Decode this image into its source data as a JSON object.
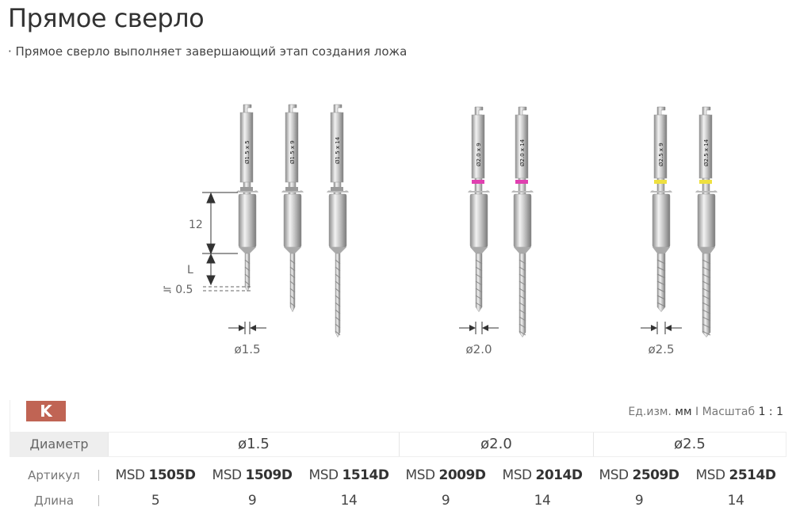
{
  "title": "Прямое сверло",
  "subtitle": "· Прямое сверло выполняет завершающий этап создания ложа",
  "figure": {
    "dims": {
      "shoulder": "12",
      "tip": "L",
      "overshoot": "≒ 0.5"
    },
    "groups": [
      {
        "diameter_label": "ø1.5",
        "band_color": "#9a9a9a",
        "drills": [
          {
            "label": "Ø1.5 x 5",
            "length": 5
          },
          {
            "label": "Ø1.5 x 9",
            "length": 9
          },
          {
            "label": "Ø1.5 x 14",
            "length": 14
          }
        ]
      },
      {
        "diameter_label": "ø2.0",
        "band_color": "#e040b0",
        "drills": [
          {
            "label": "Ø2.0 x 9",
            "length": 9
          },
          {
            "label": "Ø2.0 x 14",
            "length": 14
          }
        ]
      },
      {
        "diameter_label": "ø2.5",
        "band_color": "#eee040",
        "drills": [
          {
            "label": "Ø2.5 x 9",
            "length": 9
          },
          {
            "label": "Ø2.5 x 14",
            "length": 14
          }
        ]
      }
    ]
  },
  "badge": "K",
  "units": {
    "prefix": "Ед.изм.",
    "unit": "мм",
    "sep": "I",
    "scale_label": "Масштаб",
    "scale": "1 : 1"
  },
  "table": {
    "diameter_label": "Диаметр",
    "diameters": [
      "ø1.5",
      "ø2.0",
      "ø2.5"
    ],
    "article_label": "Артикул",
    "length_label": "Длина",
    "items": [
      {
        "prefix": "MSD",
        "code": "1505D",
        "length": "5"
      },
      {
        "prefix": "MSD",
        "code": "1509D",
        "length": "9"
      },
      {
        "prefix": "MSD",
        "code": "1514D",
        "length": "14"
      },
      {
        "prefix": "MSD",
        "code": "2009D",
        "length": "9"
      },
      {
        "prefix": "MSD",
        "code": "2014D",
        "length": "14"
      },
      {
        "prefix": "MSD",
        "code": "2509D",
        "length": "9"
      },
      {
        "prefix": "MSD",
        "code": "2514D",
        "length": "14"
      }
    ]
  }
}
